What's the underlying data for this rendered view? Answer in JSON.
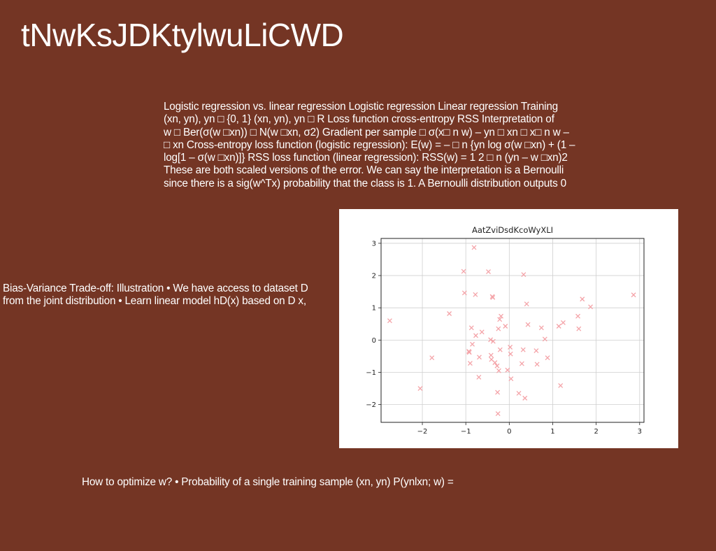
{
  "slide": {
    "title": "tNwKsJDKtylwuLiCWD"
  },
  "text_blocks": {
    "main_lines": [
      "Logistic regression vs. linear regression Logistic regression Linear regression Training",
      "(xn, yn), yn □ {0, 1} (xn, yn), yn □ R Loss function cross-entropy RSS Interpretation of",
      "w □ Ber(σ(w □xn)) □ N(w □xn, σ2) Gradient per sample □ σ(x□ n w) – yn □ xn □ x□ n w –",
      "□ xn Cross-entropy loss function (logistic regression): E(w) = – □ n {yn log σ(w □xn) + (1 –",
      "log[1 – σ(w □xn)]} RSS loss function (linear regression): RSS(w) = 1 2 □ n (yn – w □xn)2",
      "These are both scaled versions of the error. We can say the interpretation is a Bernoulli",
      "since there is a sig(w^Tx) probability that the class is 1. A Bernoulli distribution outputs 0"
    ],
    "bias_lines": [
      "Bias-Variance Trade-off: Illustration • We have access to dataset D",
      "from the joint distribution • Learn linear model hD(x) based on D x,"
    ],
    "optimize_lines": [
      "How to optimize w? • Probability of a single training sample (xn, yn) P(ynlxn; w) ="
    ]
  },
  "chart_data": {
    "type": "scatter",
    "title": "AatZviDsdKcoWyXLI",
    "xlabel": "",
    "ylabel": "",
    "xlim": [
      -2.95,
      3.1
    ],
    "ylim": [
      -2.55,
      3.15
    ],
    "xticks": [
      -2,
      -1,
      0,
      1,
      2,
      3
    ],
    "yticks": [
      -2,
      -1,
      0,
      1,
      2,
      3
    ],
    "xtick_labels": [
      "−2",
      "−1",
      "0",
      "1",
      "2",
      "3"
    ],
    "ytick_labels": [
      "−2",
      "−1",
      "0",
      "1",
      "2",
      "3"
    ],
    "grid": true,
    "marker": "x",
    "marker_color": "#f4a3a8",
    "series": [
      {
        "points": [
          [
            -2.75,
            0.6
          ],
          [
            -2.05,
            -1.5
          ],
          [
            -1.78,
            -0.55
          ],
          [
            -1.38,
            0.82
          ],
          [
            -1.05,
            2.13
          ],
          [
            -1.03,
            1.46
          ],
          [
            -0.93,
            -0.35
          ],
          [
            -0.92,
            -0.38
          ],
          [
            -0.9,
            -0.72
          ],
          [
            -0.87,
            0.38
          ],
          [
            -0.85,
            -0.13
          ],
          [
            -0.81,
            2.87
          ],
          [
            -0.78,
            1.41
          ],
          [
            -0.77,
            0.14
          ],
          [
            -0.7,
            -1.15
          ],
          [
            -0.69,
            -0.53
          ],
          [
            -0.63,
            0.25
          ],
          [
            -0.48,
            2.12
          ],
          [
            -0.43,
            0.01
          ],
          [
            -0.42,
            -0.47
          ],
          [
            -0.41,
            -0.6
          ],
          [
            -0.39,
            1.35
          ],
          [
            -0.38,
            1.32
          ],
          [
            -0.37,
            -0.04
          ],
          [
            -0.33,
            -0.7
          ],
          [
            -0.28,
            -0.8
          ],
          [
            -0.27,
            -1.62
          ],
          [
            -0.26,
            -2.28
          ],
          [
            -0.25,
            0.35
          ],
          [
            -0.24,
            -0.95
          ],
          [
            -0.22,
            0.64
          ],
          [
            -0.21,
            -0.3
          ],
          [
            -0.19,
            0.74
          ],
          [
            -0.09,
            0.43
          ],
          [
            -0.04,
            -0.93
          ],
          [
            0.02,
            -0.22
          ],
          [
            0.03,
            -0.43
          ],
          [
            0.04,
            -1.2
          ],
          [
            0.22,
            -1.65
          ],
          [
            0.29,
            -0.73
          ],
          [
            0.32,
            -0.3
          ],
          [
            0.33,
            2.03
          ],
          [
            0.36,
            -1.8
          ],
          [
            0.4,
            1.12
          ],
          [
            0.43,
            0.48
          ],
          [
            0.62,
            -0.33
          ],
          [
            0.64,
            -0.75
          ],
          [
            0.74,
            0.38
          ],
          [
            0.82,
            0.03
          ],
          [
            0.88,
            -0.55
          ],
          [
            1.14,
            0.43
          ],
          [
            1.18,
            -1.41
          ],
          [
            1.24,
            0.54
          ],
          [
            1.58,
            0.74
          ],
          [
            1.6,
            0.35
          ],
          [
            1.68,
            1.27
          ],
          [
            1.87,
            1.03
          ],
          [
            2.86,
            1.4
          ]
        ]
      }
    ]
  }
}
